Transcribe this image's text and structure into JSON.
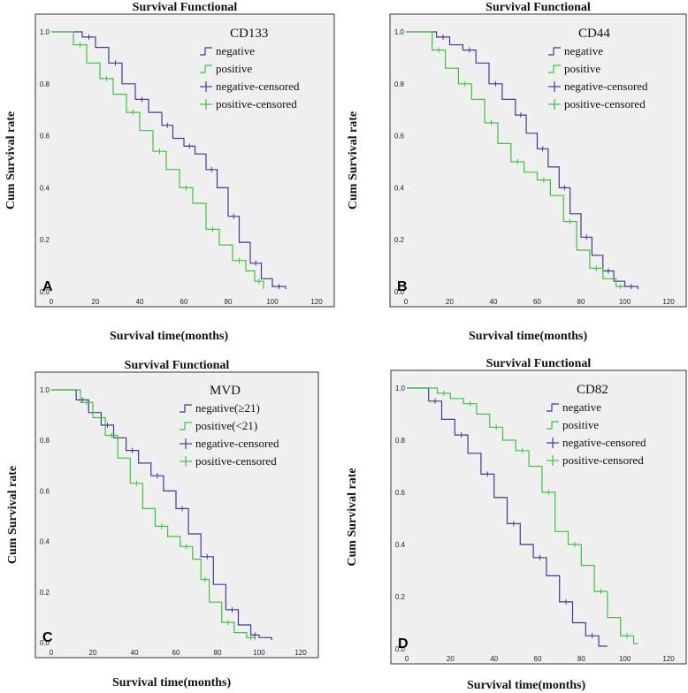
{
  "colors": {
    "negative": "#3b3b9e",
    "positive": "#3cc43c",
    "plot_bg": "#f0f0f0",
    "frame": "#333333"
  },
  "chart_data": [
    {
      "type": "line",
      "letter": "A",
      "title": "Survival Functional",
      "xlabel": "Survival time(months)",
      "ylabel": "Cum Survival rate",
      "xlim": [
        0,
        120
      ],
      "ylim": [
        0,
        1
      ],
      "xticks": [
        "0",
        "20",
        "40",
        "60",
        "80",
        "100",
        "120"
      ],
      "yticks": [
        "0.0",
        "0.2",
        "0.4",
        "0.6",
        "0.8",
        "1.0"
      ],
      "legend_title": "CD133",
      "legend": [
        "negative",
        "positive",
        "negative-censored",
        "positive-censored"
      ],
      "series": [
        {
          "name": "negative",
          "x": [
            0,
            14,
            20,
            26,
            32,
            38,
            44,
            50,
            55,
            60,
            65,
            70,
            75,
            80,
            85,
            90,
            95,
            100,
            106
          ],
          "y": [
            1.0,
            0.98,
            0.94,
            0.88,
            0.8,
            0.74,
            0.69,
            0.64,
            0.59,
            0.56,
            0.53,
            0.47,
            0.4,
            0.29,
            0.19,
            0.11,
            0.05,
            0.02,
            0.01
          ]
        },
        {
          "name": "positive",
          "x": [
            0,
            10,
            16,
            22,
            28,
            34,
            40,
            46,
            52,
            58,
            64,
            70,
            76,
            82,
            88,
            92,
            96
          ],
          "y": [
            1.0,
            0.95,
            0.88,
            0.82,
            0.76,
            0.69,
            0.62,
            0.54,
            0.47,
            0.4,
            0.34,
            0.24,
            0.18,
            0.12,
            0.08,
            0.04,
            0.01
          ]
        }
      ]
    },
    {
      "type": "line",
      "letter": "B",
      "title": "Survival Functional",
      "xlabel": "Survival time(months)",
      "ylabel": "Cum Survival rate",
      "xlim": [
        0,
        120
      ],
      "ylim": [
        0,
        1
      ],
      "xticks": [
        "0",
        "20",
        "40",
        "60",
        "80",
        "100",
        "120"
      ],
      "yticks": [
        "0.0",
        "0.2",
        "0.4",
        "0.6",
        "0.8",
        "1.0"
      ],
      "legend_title": "CD44",
      "legend": [
        "negative",
        "positive",
        "negative-censored",
        "positive-censored"
      ],
      "series": [
        {
          "name": "negative",
          "x": [
            0,
            14,
            20,
            26,
            32,
            38,
            44,
            50,
            55,
            60,
            65,
            70,
            75,
            80,
            85,
            90,
            95,
            100,
            106
          ],
          "y": [
            1.0,
            0.98,
            0.95,
            0.93,
            0.88,
            0.8,
            0.74,
            0.68,
            0.61,
            0.55,
            0.48,
            0.4,
            0.3,
            0.21,
            0.14,
            0.08,
            0.04,
            0.02,
            0.01
          ]
        },
        {
          "name": "positive",
          "x": [
            0,
            12,
            18,
            24,
            30,
            36,
            42,
            48,
            54,
            60,
            66,
            72,
            78,
            84,
            90,
            96,
            100
          ],
          "y": [
            1.0,
            0.93,
            0.86,
            0.8,
            0.74,
            0.65,
            0.57,
            0.5,
            0.46,
            0.43,
            0.37,
            0.27,
            0.16,
            0.09,
            0.05,
            0.02,
            0.02
          ]
        }
      ]
    },
    {
      "type": "line",
      "letter": "C",
      "title": "Survival  Functional",
      "xlabel": "Survival time(months)",
      "ylabel": "Cum Survival rate",
      "xlim": [
        0,
        120
      ],
      "ylim": [
        0,
        1
      ],
      "xticks": [
        "0",
        "20",
        "40",
        "60",
        "80",
        "100",
        "120"
      ],
      "yticks": [
        "0.0",
        "0.2",
        "0.4",
        "0.6",
        "0.8",
        "1.0"
      ],
      "legend_title": "MVD",
      "legend": [
        "negative(≥21)",
        "positive(<21)",
        "negative-censored",
        "positive-censored"
      ],
      "series": [
        {
          "name": "negative(≥21)",
          "x": [
            0,
            12,
            18,
            24,
            30,
            36,
            42,
            48,
            54,
            60,
            66,
            72,
            78,
            84,
            90,
            96,
            100,
            106
          ],
          "y": [
            1.0,
            0.96,
            0.91,
            0.86,
            0.81,
            0.76,
            0.71,
            0.66,
            0.6,
            0.53,
            0.43,
            0.34,
            0.23,
            0.13,
            0.07,
            0.03,
            0.02,
            0.01
          ]
        },
        {
          "name": "positive(<21)",
          "x": [
            0,
            14,
            20,
            26,
            32,
            38,
            44,
            50,
            56,
            62,
            68,
            72,
            76,
            82,
            88,
            94,
            98
          ],
          "y": [
            1.0,
            0.95,
            0.89,
            0.82,
            0.73,
            0.63,
            0.53,
            0.46,
            0.42,
            0.38,
            0.33,
            0.25,
            0.16,
            0.08,
            0.04,
            0.02,
            0.01
          ]
        }
      ]
    },
    {
      "type": "line",
      "letter": "D",
      "title": "Survival Functional",
      "xlabel": "Survival time(months)",
      "ylabel": "Cum Survival rate",
      "xlim": [
        0,
        120
      ],
      "ylim": [
        0,
        1
      ],
      "xticks": [
        "0",
        "20",
        "40",
        "60",
        "80",
        "100",
        "120"
      ],
      "yticks": [
        "0.0",
        "0.2",
        "0.4",
        "0.6",
        "0.8",
        "1.0"
      ],
      "legend_title": "CD82",
      "legend": [
        "negative",
        "positive",
        "negative-censored",
        "positive-censored"
      ],
      "series": [
        {
          "name": "negative",
          "x": [
            0,
            10,
            16,
            22,
            28,
            34,
            40,
            46,
            52,
            58,
            64,
            70,
            76,
            82,
            88,
            92
          ],
          "y": [
            1.0,
            0.95,
            0.88,
            0.82,
            0.75,
            0.67,
            0.58,
            0.48,
            0.4,
            0.35,
            0.28,
            0.18,
            0.1,
            0.05,
            0.01,
            0.01
          ]
        },
        {
          "name": "positive",
          "x": [
            0,
            14,
            20,
            26,
            32,
            38,
            44,
            50,
            56,
            62,
            68,
            74,
            80,
            86,
            92,
            98,
            104,
            106
          ],
          "y": [
            1.0,
            0.98,
            0.96,
            0.94,
            0.9,
            0.85,
            0.8,
            0.76,
            0.7,
            0.6,
            0.45,
            0.4,
            0.32,
            0.22,
            0.12,
            0.05,
            0.02,
            0.02
          ]
        }
      ]
    }
  ]
}
